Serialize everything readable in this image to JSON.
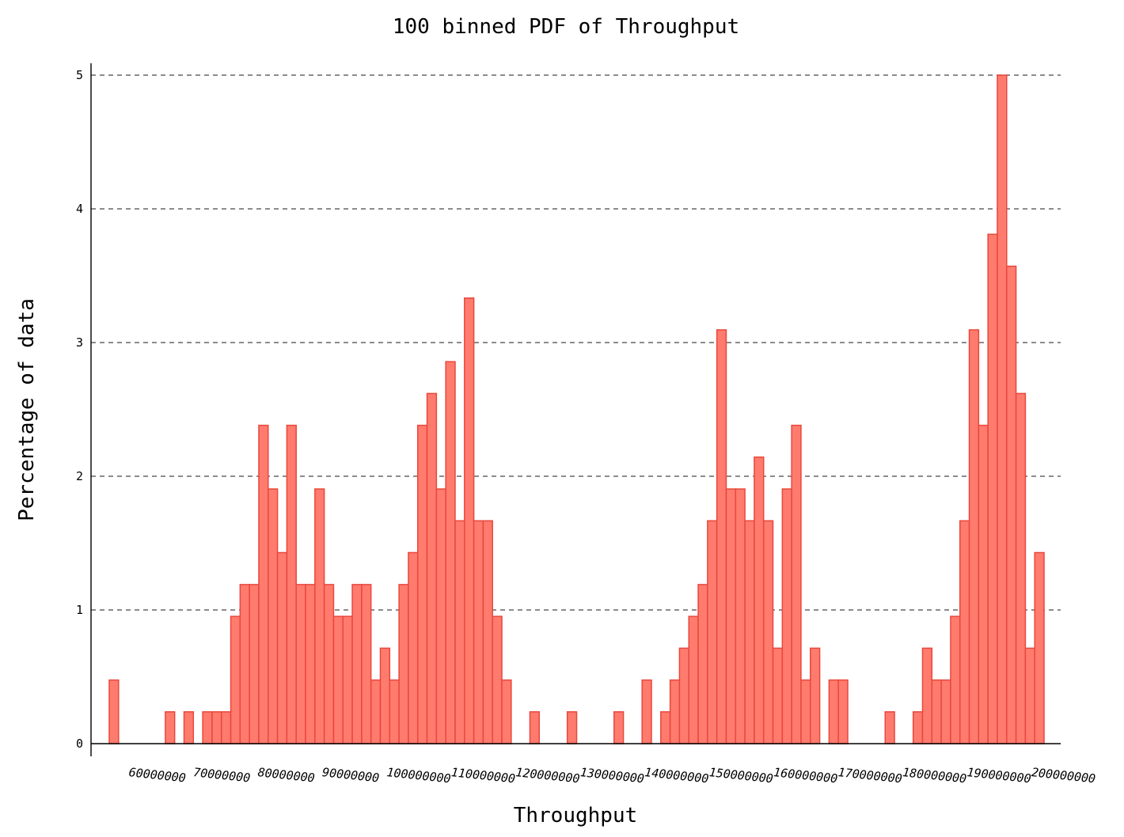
{
  "chart_data": {
    "type": "bar",
    "title": "100 binned PDF of Throughput",
    "xlabel": "Throughput",
    "ylabel": "Percentage of data",
    "xlim": [
      55000000,
      205000000
    ],
    "ylim": [
      0,
      5.1
    ],
    "grid": true,
    "yticks": [
      0,
      1,
      2,
      3,
      4,
      5
    ],
    "xticks": [
      60000000,
      70000000,
      80000000,
      90000000,
      100000000,
      110000000,
      120000000,
      130000000,
      140000000,
      150000000,
      160000000,
      170000000,
      180000000,
      190000000,
      200000000
    ],
    "bin_start": 58000000,
    "bin_width": 1450000,
    "values": [
      0.476,
      0,
      0,
      0,
      0,
      0,
      0.238,
      0,
      0.238,
      0,
      0.238,
      0.238,
      0.238,
      0.952,
      1.19,
      1.19,
      2.381,
      1.905,
      1.429,
      2.381,
      1.19,
      1.19,
      1.905,
      1.19,
      0.952,
      0.952,
      1.19,
      1.19,
      0.476,
      0.714,
      0.476,
      1.19,
      1.429,
      2.381,
      2.619,
      1.905,
      2.857,
      1.667,
      3.333,
      1.667,
      1.667,
      0.952,
      0.476,
      0,
      0,
      0.238,
      0,
      0,
      0,
      0.238,
      0,
      0,
      0,
      0,
      0.238,
      0,
      0,
      0.476,
      0,
      0.238,
      0.476,
      0.714,
      0.952,
      1.19,
      1.667,
      3.095,
      1.905,
      1.905,
      1.667,
      2.143,
      1.667,
      0.714,
      1.905,
      2.381,
      0.476,
      0.714,
      0,
      0.476,
      0.476,
      0,
      0,
      0,
      0,
      0.238,
      0,
      0,
      0.238,
      0.714,
      0.476,
      0.476,
      0.952,
      1.667,
      3.095,
      2.381,
      3.81,
      5.0,
      3.571,
      2.619,
      0.714,
      1.429
    ]
  }
}
